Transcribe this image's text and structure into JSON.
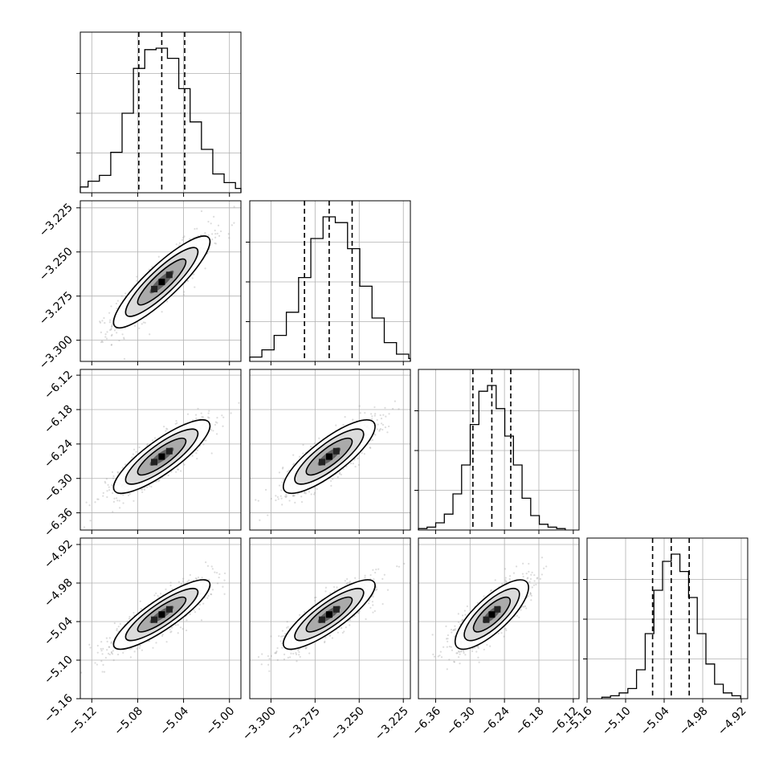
{
  "chart_data": {
    "type": "corner",
    "grid": true,
    "parameters": [
      {
        "range": [
          -5.13,
          -4.99
        ],
        "ticks": [
          -5.12,
          -5.08,
          -5.04,
          -5.0
        ],
        "tick_labels": [
          "−5.12",
          "−5.08",
          "−5.04",
          "−5.00"
        ],
        "mean": -5.059,
        "sd": 0.021,
        "quantiles": [
          -5.079,
          -5.059,
          -5.039
        ],
        "hist_counts": [
          0.01,
          0.04,
          0.08,
          0.12,
          0.28,
          0.55,
          0.86,
          0.99,
          1.0,
          0.93,
          0.72,
          0.49,
          0.3,
          0.13,
          0.07,
          0.03,
          0.01
        ]
      },
      {
        "range": [
          -3.312,
          -3.221
        ],
        "ticks": [
          -3.3,
          -3.275,
          -3.25,
          -3.225
        ],
        "tick_labels": [
          "−3.300",
          "−3.275",
          "−3.250",
          "−3.225"
        ],
        "mean": -3.267,
        "sd": 0.013,
        "quantiles": [
          -3.281,
          -3.267,
          -3.254
        ],
        "hist_counts": [
          0.01,
          0.03,
          0.08,
          0.18,
          0.34,
          0.58,
          0.85,
          1.0,
          0.96,
          0.78,
          0.52,
          0.3,
          0.13,
          0.05,
          0.02
        ]
      },
      {
        "range": [
          -6.39,
          -6.11
        ],
        "ticks": [
          -6.36,
          -6.3,
          -6.24,
          -6.18,
          -6.12
        ],
        "tick_labels": [
          "−6.36",
          "−6.30",
          "−6.24",
          "−6.18",
          "−6.12"
        ],
        "mean": -6.262,
        "sd": 0.032,
        "quantiles": [
          -6.295,
          -6.262,
          -6.229
        ],
        "hist_counts": [
          0.01,
          0.02,
          0.05,
          0.11,
          0.25,
          0.45,
          0.73,
          0.96,
          1.0,
          0.84,
          0.65,
          0.45,
          0.22,
          0.1,
          0.04,
          0.02,
          0.01
        ]
      },
      {
        "range": [
          -5.16,
          -4.91
        ],
        "ticks": [
          -5.16,
          -5.1,
          -5.04,
          -4.98,
          -4.92
        ],
        "tick_labels": [
          "−5.16",
          "−5.10",
          "−5.04",
          "−4.98",
          "−4.92"
        ],
        "mean": -5.029,
        "sd": 0.027,
        "quantiles": [
          -5.058,
          -5.029,
          -5.001
        ],
        "hist_counts": [
          0.01,
          0.02,
          0.04,
          0.07,
          0.2,
          0.45,
          0.75,
          0.95,
          1.0,
          0.88,
          0.7,
          0.45,
          0.24,
          0.1,
          0.04,
          0.02
        ]
      }
    ],
    "correlations": [
      [
        1.0,
        0.88,
        0.84,
        0.86
      ],
      [
        0.88,
        1.0,
        0.82,
        0.84
      ],
      [
        0.84,
        0.82,
        1.0,
        0.78
      ],
      [
        0.86,
        0.84,
        0.78,
        1.0
      ]
    ],
    "contour_levels_sigma": [
      0.5,
      1.0,
      1.5,
      2.0
    ]
  }
}
